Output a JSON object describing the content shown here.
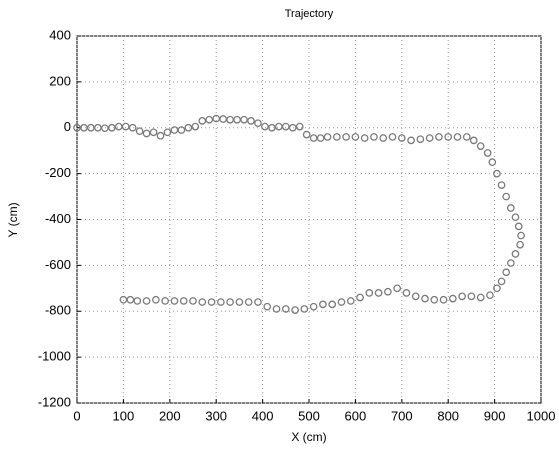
{
  "chart_data": {
    "type": "scatter",
    "title": "Trajectory",
    "x_label": "X (cm)",
    "y_label": "Y (cm)",
    "xlim": [
      0,
      1000
    ],
    "ylim": [
      -1200,
      400
    ],
    "xticks": [
      0,
      100,
      200,
      300,
      400,
      500,
      600,
      700,
      800,
      900,
      1000
    ],
    "yticks": [
      -1200,
      -1000,
      -800,
      -600,
      -400,
      -200,
      0,
      200,
      400
    ],
    "grid": true,
    "color": "#7a7a7a",
    "x": [
      0,
      15,
      30,
      45,
      60,
      75,
      90,
      105,
      120,
      135,
      150,
      165,
      180,
      195,
      210,
      225,
      240,
      255,
      270,
      285,
      300,
      315,
      330,
      345,
      360,
      375,
      390,
      405,
      420,
      435,
      450,
      465,
      480,
      495,
      510,
      525,
      540,
      560,
      580,
      600,
      620,
      640,
      660,
      680,
      700,
      720,
      740,
      760,
      780,
      800,
      820,
      840,
      855,
      870,
      885,
      895,
      905,
      915,
      925,
      935,
      945,
      952,
      957,
      955,
      945,
      935,
      925,
      915,
      905,
      890,
      870,
      850,
      830,
      810,
      790,
      770,
      750,
      730,
      710,
      690,
      670,
      650,
      630,
      610,
      590,
      570,
      550,
      530,
      510,
      490,
      470,
      450,
      430,
      410,
      390,
      370,
      350,
      330,
      310,
      290,
      270,
      250,
      230,
      210,
      190,
      170,
      150,
      130,
      115,
      100
    ],
    "y": [
      0,
      0,
      0,
      0,
      -2,
      0,
      5,
      5,
      0,
      -15,
      -25,
      -20,
      -35,
      -20,
      -10,
      -10,
      0,
      5,
      30,
      35,
      40,
      38,
      35,
      35,
      35,
      30,
      20,
      5,
      0,
      5,
      5,
      0,
      5,
      -30,
      -45,
      -45,
      -40,
      -40,
      -40,
      -40,
      -45,
      -40,
      -45,
      -40,
      -45,
      -55,
      -50,
      -45,
      -40,
      -40,
      -40,
      -40,
      -55,
      -80,
      -110,
      -150,
      -200,
      -250,
      -300,
      -350,
      -390,
      -430,
      -470,
      -510,
      -550,
      -590,
      -630,
      -670,
      -700,
      -730,
      -740,
      -735,
      -735,
      -745,
      -750,
      -750,
      -745,
      -735,
      -720,
      -700,
      -715,
      -720,
      -720,
      -740,
      -755,
      -760,
      -770,
      -770,
      -780,
      -790,
      -795,
      -790,
      -790,
      -780,
      -760,
      -760,
      -760,
      -760,
      -760,
      -760,
      -760,
      -755,
      -755,
      -755,
      -755,
      -750,
      -755,
      -755,
      -750,
      -750
    ]
  }
}
